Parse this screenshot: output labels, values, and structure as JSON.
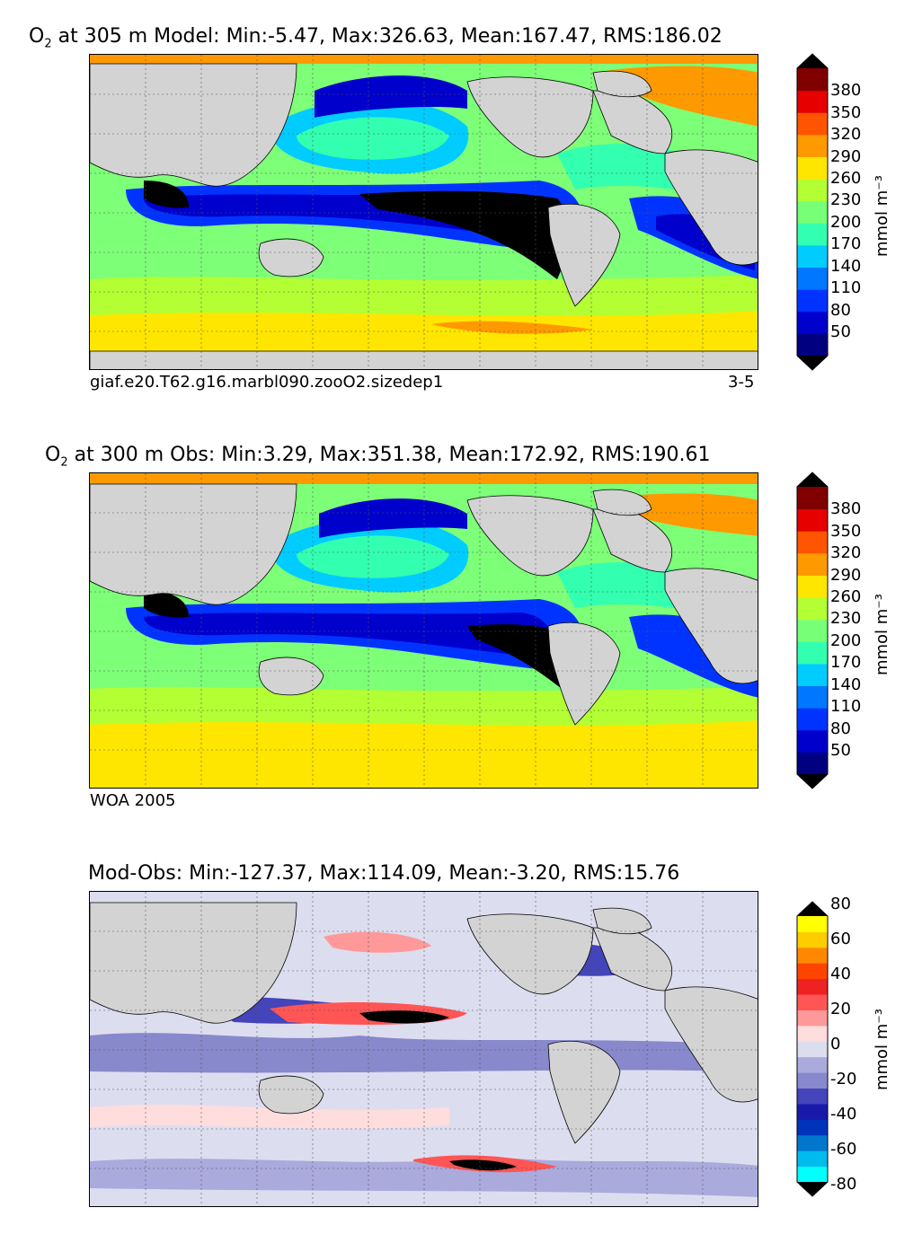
{
  "panels": [
    {
      "id": "model",
      "title_o": "O",
      "title_sub": "2",
      "title_rest": " at 305 m Model: Min:-5.47, Max:326.63, Mean:167.47, RMS:186.02",
      "caption_left": "giaf.e20.T62.g16.marbl090.zooO2.sizedep1",
      "caption_right": "3-5"
    },
    {
      "id": "obs",
      "title_o": "O",
      "title_sub": "2",
      "title_rest": " at 300 m Obs: Min:3.29, Max:351.38, Mean:172.92, RMS:190.61",
      "caption_left": "WOA 2005",
      "caption_right": ""
    },
    {
      "id": "diff",
      "title_o": "",
      "title_sub": "",
      "title_rest": "Mod-Obs: Min:-127.37, Max:114.09, Mean:-3.20, RMS:15.76",
      "caption_left": "",
      "caption_right": ""
    }
  ],
  "colorbars": {
    "o2": {
      "label": "mmol m⁻³",
      "ticks": [
        "380",
        "350",
        "320",
        "290",
        "260",
        "230",
        "200",
        "170",
        "140",
        "110",
        "80",
        "50"
      ],
      "colors": [
        "#000080",
        "#0000cd",
        "#0033ff",
        "#0077ff",
        "#00ccff",
        "#33ffb0",
        "#77ff77",
        "#b3ff33",
        "#ffe600",
        "#ff9900",
        "#ff5500",
        "#e60000",
        "#800000"
      ],
      "under": "#000000",
      "over": "#000000"
    },
    "diff": {
      "label": "mmol m⁻³",
      "ticks": [
        "80",
        "60",
        "40",
        "20",
        "0",
        "-20",
        "-40",
        "-60",
        "-80"
      ],
      "colors": [
        "#00ffff",
        "#00bbee",
        "#0077cc",
        "#0033bb",
        "#1a1aaa",
        "#4444bb",
        "#8888cc",
        "#aaaadd",
        "#ddddf0",
        "#ffdddd",
        "#ff9999",
        "#ff5555",
        "#ee2222",
        "#ff4400",
        "#ff8800",
        "#ffcc00",
        "#ffff00"
      ],
      "under": "#000000",
      "over": "#000000"
    }
  },
  "chart_data": [
    {
      "type": "heatmap",
      "title": "O2 at 305 m Model: Min:-5.47, Max:326.63, Mean:167.47, RMS:186.02",
      "variable": "O2",
      "depth_m": 305,
      "stats": {
        "min": -5.47,
        "max": 326.63,
        "mean": 167.47,
        "rms": 186.02
      },
      "units": "mmol m-3",
      "contour_levels": [
        50,
        80,
        110,
        140,
        170,
        200,
        230,
        260,
        290,
        320,
        350,
        380
      ],
      "source": "giaf.e20.T62.g16.marbl090.zooO2.sizedep1",
      "years": "3-5"
    },
    {
      "type": "heatmap",
      "title": "O2 at 300 m Obs: Min:3.29, Max:351.38, Mean:172.92, RMS:190.61",
      "variable": "O2",
      "depth_m": 300,
      "stats": {
        "min": 3.29,
        "max": 351.38,
        "mean": 172.92,
        "rms": 190.61
      },
      "units": "mmol m-3",
      "contour_levels": [
        50,
        80,
        110,
        140,
        170,
        200,
        230,
        260,
        290,
        320,
        350,
        380
      ],
      "source": "WOA 2005"
    },
    {
      "type": "heatmap",
      "title": "Mod-Obs: Min:-127.37, Max:114.09, Mean:-3.20, RMS:15.76",
      "stats": {
        "min": -127.37,
        "max": 114.09,
        "mean": -3.2,
        "rms": 15.76
      },
      "units": "mmol m-3",
      "contour_levels": [
        -80,
        -70,
        -60,
        -50,
        -40,
        -30,
        -20,
        -10,
        -5,
        0,
        5,
        10,
        20,
        30,
        40,
        50,
        60,
        70,
        80
      ]
    }
  ]
}
